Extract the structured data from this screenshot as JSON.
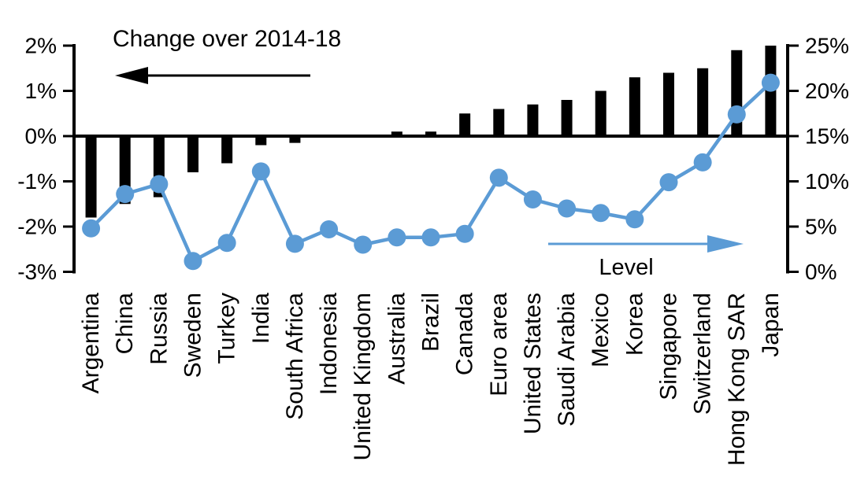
{
  "chart_data": {
    "type": "bar",
    "subtype": "combo-bar-line-dual-axis",
    "categories": [
      "Argentina",
      "China",
      "Russia",
      "Sweden",
      "Turkey",
      "India",
      "South Africa",
      "Indonesia",
      "United Kingdom",
      "Australia",
      "Brazil",
      "Canada",
      "Euro area",
      "United States",
      "Saudi Arabia",
      "Mexico",
      "Korea",
      "Singapore",
      "Switzerland",
      "Hong Kong SAR",
      "Japan"
    ],
    "series": [
      {
        "name": "Change over 2014-18",
        "type": "bar",
        "axis": "left",
        "unit": "%",
        "color": "#000000",
        "values": [
          -1.8,
          -1.5,
          -1.35,
          -0.8,
          -0.6,
          -0.2,
          -0.15,
          0,
          0,
          0.1,
          0.1,
          0.5,
          0.6,
          0.7,
          0.8,
          1.0,
          1.3,
          1.4,
          1.5,
          1.9,
          2.0
        ]
      },
      {
        "name": "Level",
        "type": "line",
        "axis": "right",
        "unit": "%",
        "color": "#5B9BD5",
        "values": [
          4.8,
          8.6,
          9.7,
          1.2,
          3.2,
          11.1,
          3.1,
          4.7,
          3.0,
          3.8,
          3.8,
          4.2,
          10.4,
          8.0,
          7.0,
          6.5,
          5.8,
          9.9,
          12.1,
          17.4,
          20.9
        ]
      }
    ],
    "left_axis": {
      "min": -3,
      "max": 2,
      "tick_step": 1,
      "tick_labels": [
        "2%",
        "1%",
        "0%",
        "-1%",
        "-2%",
        "-3%"
      ]
    },
    "right_axis": {
      "min": 0,
      "max": 25,
      "tick_step": 5,
      "tick_labels": [
        "25%",
        "20%",
        "15%",
        "10%",
        "5%",
        "0%"
      ]
    },
    "annotations": [
      {
        "id": "change",
        "text": "Change over 2014-18",
        "arrow_direction": "left",
        "color": "#000000"
      },
      {
        "id": "level",
        "text": "Level",
        "arrow_direction": "right",
        "color": "#5B9BD5"
      }
    ],
    "grid": false,
    "legend_position": "none",
    "colors": {
      "bar": "#000000",
      "line": "#5B9BD5",
      "background": "#ffffff"
    }
  }
}
